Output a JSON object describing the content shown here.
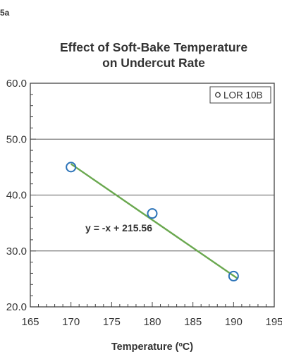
{
  "figure_label": "5a",
  "chart_data": {
    "type": "scatter",
    "title": [
      "Effect of Soft-Bake Temperature",
      "on Undercut Rate"
    ],
    "xlabel": "Temperature (ºC)",
    "ylabel": "",
    "xlim": [
      165,
      195
    ],
    "ylim": [
      20,
      60
    ],
    "x_ticks": [
      165,
      170,
      175,
      180,
      185,
      190,
      195
    ],
    "x_tick_labels": [
      "165",
      "170",
      "175",
      "180",
      "185",
      "190",
      "195"
    ],
    "y_ticks": [
      20,
      30,
      40,
      50,
      60
    ],
    "y_tick_labels": [
      "20.0",
      "30.0",
      "40.0",
      "50.0",
      "60.0"
    ],
    "grid": "horizontal",
    "legend": {
      "placement": "top-right",
      "entries": [
        "LOR 10B"
      ]
    },
    "series": [
      {
        "name": "LOR 10B",
        "x": [
          170,
          180,
          190
        ],
        "y": [
          45,
          36.7,
          25.5
        ],
        "marker_color": "#2b73b8"
      }
    ],
    "trendline": {
      "slope": -1,
      "intercept": 215.56,
      "x_range": [
        170,
        190.5
      ],
      "equation": "y = -x + 215.56",
      "equation_at": {
        "x": 180,
        "y": 33.5
      },
      "color": "#6aa84f"
    }
  }
}
